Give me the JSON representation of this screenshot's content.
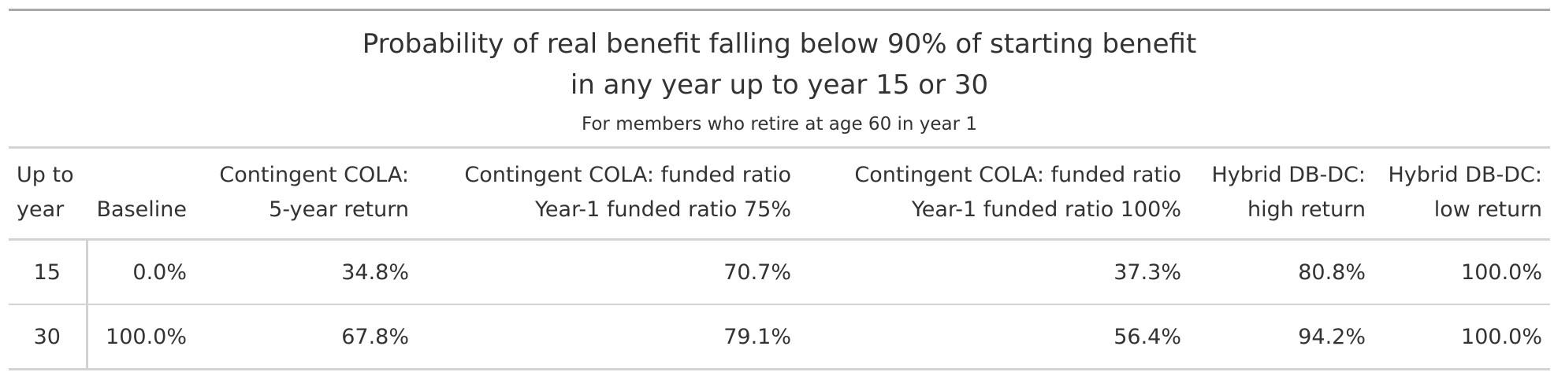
{
  "title": {
    "line1": "Probability of real benefit falling below 90% of starting benefit",
    "line2": "in any year up to year 15 or 30"
  },
  "subtitle": "For members who retire at age 60 in year 1",
  "columns": [
    {
      "line1": "Up to",
      "line2": "year"
    },
    {
      "line1": "",
      "line2": "Baseline"
    },
    {
      "line1": "Contingent COLA:",
      "line2": "5-year return"
    },
    {
      "line1": "Contingent COLA: funded ratio",
      "line2": "Year-1 funded ratio 75%"
    },
    {
      "line1": "Contingent COLA: funded ratio",
      "line2": "Year-1 funded ratio 100%"
    },
    {
      "line1": "Hybrid DB-DC:",
      "line2": "high return"
    },
    {
      "line1": "Hybrid DB-DC:",
      "line2": "low return"
    }
  ],
  "rows": [
    {
      "year": "15",
      "cells": [
        "0.0%",
        "34.8%",
        "70.7%",
        "37.3%",
        "80.8%",
        "100.0%"
      ]
    },
    {
      "year": "30",
      "cells": [
        "100.0%",
        "67.8%",
        "79.1%",
        "56.4%",
        "94.2%",
        "100.0%"
      ]
    }
  ]
}
